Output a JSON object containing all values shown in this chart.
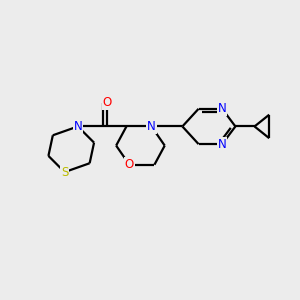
{
  "bg_color": "#ececec",
  "bond_color": "#000000",
  "line_width": 1.6,
  "atom_colors": {
    "N": "#0000ff",
    "O": "#ff0000",
    "S": "#bbbb00",
    "C": "#000000"
  },
  "font_size": 8.5
}
